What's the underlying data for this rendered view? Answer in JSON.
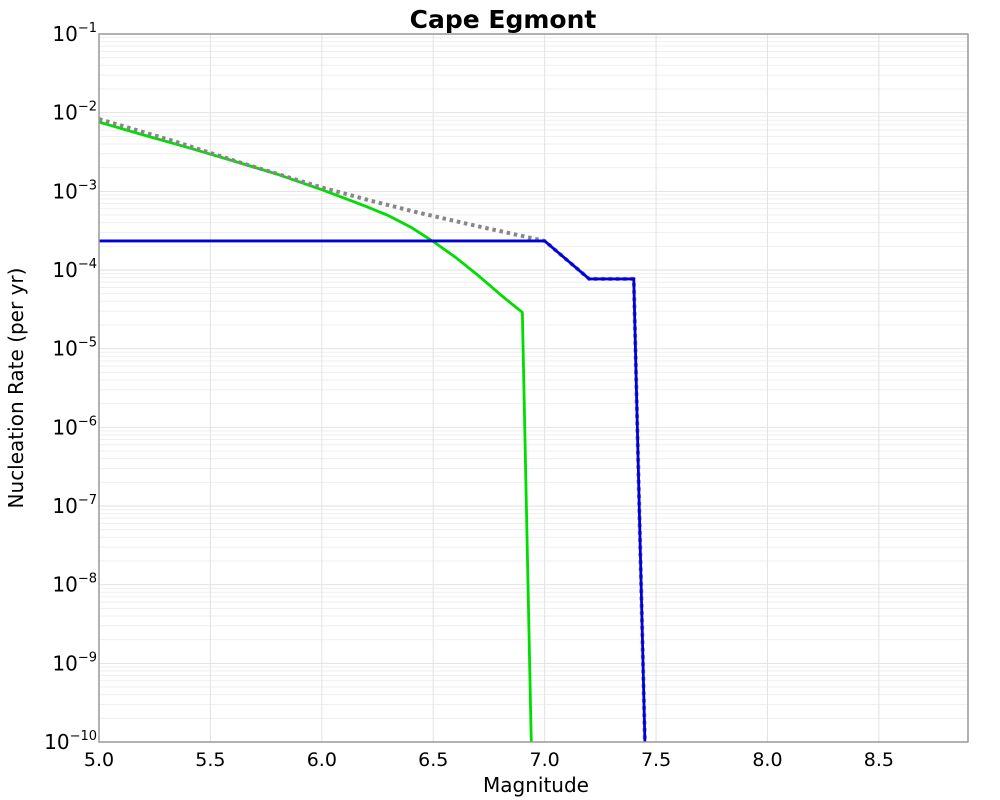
{
  "chart_data": {
    "type": "line",
    "title": "Cape Egmont",
    "xlabel": "Magnitude",
    "ylabel": "Nucleation Rate (per yr)",
    "xlim": [
      5.0,
      8.9
    ],
    "yscale": "log",
    "ylim": [
      1e-10,
      0.1
    ],
    "x_ticks": [
      5.0,
      5.5,
      6.0,
      6.5,
      7.0,
      7.5,
      8.0,
      8.5
    ],
    "y_tick_exponents": [
      -1,
      -2,
      -3,
      -4,
      -5,
      -6,
      -7,
      -8,
      -9,
      -10
    ],
    "grid": {
      "major": true,
      "minor": true,
      "major_color": "#e2e2e2",
      "minor_color": "#efefef"
    },
    "legend": null,
    "series": [
      {
        "name": "green-solid-curve",
        "color": "#00dd00",
        "style": "solid",
        "width": 2.8,
        "points": [
          [
            5.0,
            0.0076
          ],
          [
            5.2,
            0.0052
          ],
          [
            5.4,
            0.0036
          ],
          [
            5.6,
            0.00245
          ],
          [
            5.8,
            0.00165
          ],
          [
            6.0,
            0.00105
          ],
          [
            6.1,
            0.00082
          ],
          [
            6.2,
            0.00064
          ],
          [
            6.3,
            0.00049
          ],
          [
            6.4,
            0.00035
          ],
          [
            6.5,
            0.00023
          ],
          [
            6.6,
            0.000145
          ],
          [
            6.7,
            8.6e-05
          ],
          [
            6.75,
            6.5e-05
          ],
          [
            6.8,
            4.9e-05
          ],
          [
            6.85,
            3.75e-05
          ],
          [
            6.9,
            2.9e-05
          ],
          [
            6.94,
            1e-10
          ]
        ]
      },
      {
        "name": "gray-dotted-curve",
        "color": "#878787",
        "style": "dotted",
        "width": 4,
        "points": [
          [
            5.0,
            0.0083
          ],
          [
            5.33,
            0.0044
          ],
          [
            5.66,
            0.0022
          ],
          [
            6.0,
            0.00112
          ],
          [
            6.22,
            0.00076
          ],
          [
            6.44,
            0.00053
          ],
          [
            6.72,
            0.00035
          ],
          [
            7.0,
            0.000234
          ],
          [
            7.2,
            7.7e-05
          ],
          [
            7.4,
            7.7e-05
          ],
          [
            7.45,
            1e-10
          ]
        ]
      },
      {
        "name": "blue-solid-curve",
        "color": "#0000dd",
        "style": "solid",
        "width": 2.8,
        "points": [
          [
            5.0,
            0.000234
          ],
          [
            7.0,
            0.000234
          ],
          [
            7.2,
            7.7e-05
          ],
          [
            7.4,
            7.7e-05
          ],
          [
            7.45,
            1e-10
          ]
        ]
      }
    ]
  },
  "colors": {
    "spine": "#999999",
    "tick_text": "#000000",
    "background": "#ffffff"
  }
}
